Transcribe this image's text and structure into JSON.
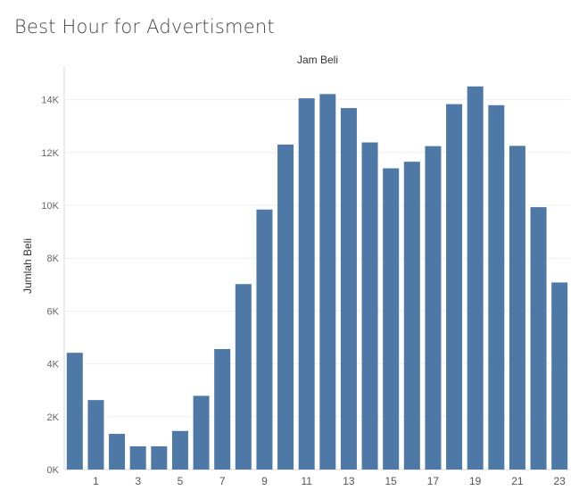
{
  "title": "Best Hour for Advertisment",
  "chart_data": {
    "type": "bar",
    "title": "Best Hour for Advertisment",
    "xlabel": "Jam Beli",
    "ylabel": "Jumlah Beli",
    "categories": [
      0,
      1,
      2,
      3,
      4,
      5,
      6,
      7,
      8,
      9,
      10,
      11,
      12,
      13,
      14,
      15,
      16,
      17,
      18,
      19,
      20,
      21,
      22,
      23
    ],
    "x_tick_labels": [
      "1",
      "3",
      "5",
      "7",
      "9",
      "11",
      "13",
      "15",
      "17",
      "19",
      "21",
      "23"
    ],
    "y_tick_labels": [
      "0K",
      "2K",
      "4K",
      "6K",
      "8K",
      "10K",
      "12K",
      "14K"
    ],
    "series": [
      {
        "values": [
          4420,
          2630,
          1350,
          880,
          880,
          1460,
          2790,
          4560,
          7020,
          9840,
          12300,
          14050,
          14210,
          13680,
          12380,
          11400,
          11650,
          12240,
          13830,
          14500,
          13790,
          12250,
          9930,
          7080
        ]
      }
    ],
    "ylim": [
      0,
      15000
    ],
    "grid": true,
    "bar_color": "#4e79a7"
  }
}
